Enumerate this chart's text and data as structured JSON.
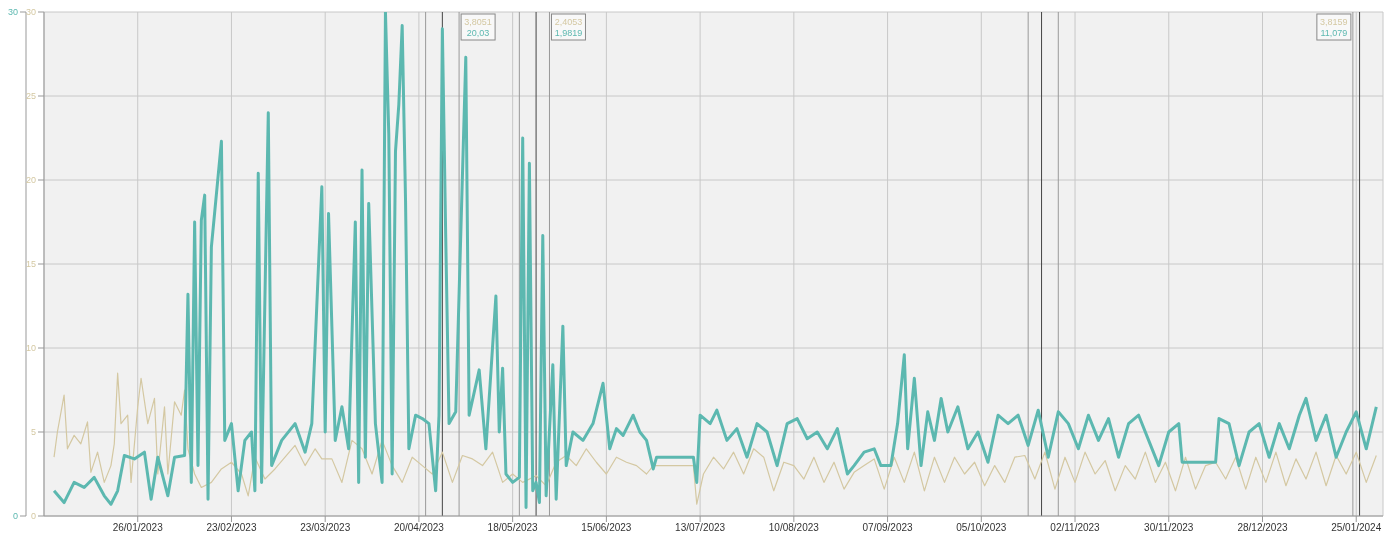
{
  "chart_data": {
    "type": "line",
    "xlim": [
      "2022-12-29",
      "2024-02-02"
    ],
    "xticks": [
      {
        "value": "2023-01-26",
        "label": "26/01/2023"
      },
      {
        "value": "2023-02-23",
        "label": "23/02/2023"
      },
      {
        "value": "2023-03-23",
        "label": "23/03/2023"
      },
      {
        "value": "2023-04-20",
        "label": "20/04/2023"
      },
      {
        "value": "2023-05-18",
        "label": "18/05/2023"
      },
      {
        "value": "2023-06-15",
        "label": "15/06/2023"
      },
      {
        "value": "2023-07-13",
        "label": "13/07/2023"
      },
      {
        "value": "2023-08-10",
        "label": "10/08/2023"
      },
      {
        "value": "2023-09-07",
        "label": "07/09/2023"
      },
      {
        "value": "2023-10-05",
        "label": "05/10/2023"
      },
      {
        "value": "2023-11-02",
        "label": "02/11/2023"
      },
      {
        "value": "2023-11-30",
        "label": "30/11/2023"
      },
      {
        "value": "2023-12-28",
        "label": "28/12/2023"
      },
      {
        "value": "2024-01-25",
        "label": "25/01/2024"
      }
    ],
    "ylim": [
      0,
      30
    ],
    "yticks": [
      0,
      5,
      10,
      15,
      20,
      25,
      30
    ],
    "y2lim": [
      0,
      30
    ],
    "y2ticks": [
      0,
      30
    ],
    "grid": true,
    "marker": "none",
    "line_style": "solid",
    "ref_lines": [
      {
        "axis": "x",
        "value": "2023-04-22",
        "color": "#999999"
      },
      {
        "axis": "x",
        "value": "2023-04-27",
        "color": "#444444"
      },
      {
        "axis": "x",
        "value": "2023-05-02",
        "color": "#999999"
      },
      {
        "axis": "x",
        "value": "2023-05-20",
        "color": "#999999"
      },
      {
        "axis": "x",
        "value": "2023-05-25",
        "color": "#444444"
      },
      {
        "axis": "x",
        "value": "2023-05-29",
        "color": "#999999"
      },
      {
        "axis": "x",
        "value": "2023-10-19",
        "color": "#999999"
      },
      {
        "axis": "x",
        "value": "2023-10-23",
        "color": "#444444"
      },
      {
        "axis": "x",
        "value": "2023-10-28",
        "color": "#999999"
      },
      {
        "axis": "x",
        "value": "2024-01-24",
        "color": "#999999"
      },
      {
        "axis": "x",
        "value": "2024-01-26",
        "color": "#444444"
      }
    ],
    "annotations": [
      {
        "text": "3,8051",
        "x": "2023-05-02"
      },
      {
        "text": "20,03",
        "x": "2023-05-02"
      },
      {
        "text": "2,4053",
        "x": "2023-05-29"
      },
      {
        "text": "1,9819",
        "x": "2023-05-29"
      },
      {
        "text": "3,8159",
        "x": "2024-01-24"
      },
      {
        "text": "11,079",
        "x": "2024-01-24"
      }
    ],
    "series": [
      {
        "color": "#d4c8a2",
        "x": [
          "2023-01-01",
          "2023-01-02",
          "2023-01-04",
          "2023-01-05",
          "2023-01-07",
          "2023-01-09",
          "2023-01-11",
          "2023-01-12",
          "2023-01-14",
          "2023-01-16",
          "2023-01-18",
          "2023-01-19",
          "2023-01-20",
          "2023-01-21",
          "2023-01-23",
          "2023-01-24",
          "2023-01-26",
          "2023-01-27",
          "2023-01-29",
          "2023-01-31",
          "2023-02-01",
          "2023-02-03",
          "2023-02-04",
          "2023-02-06",
          "2023-02-08",
          "2023-02-09",
          "2023-02-10",
          "2023-02-12",
          "2023-02-14",
          "2023-02-17",
          "2023-02-20",
          "2023-02-23",
          "2023-02-26",
          "2023-02-28",
          "2023-03-02",
          "2023-03-05",
          "2023-03-08",
          "2023-03-11",
          "2023-03-14",
          "2023-03-17",
          "2023-03-20",
          "2023-03-22",
          "2023-03-25",
          "2023-03-28",
          "2023-03-31",
          "2023-04-03",
          "2023-04-06",
          "2023-04-09",
          "2023-04-12",
          "2023-04-15",
          "2023-04-18",
          "2023-04-21",
          "2023-04-24",
          "2023-04-27",
          "2023-04-30",
          "2023-05-03",
          "2023-05-06",
          "2023-05-09",
          "2023-05-12",
          "2023-05-15",
          "2023-05-18",
          "2023-05-21",
          "2023-05-25",
          "2023-05-28",
          "2023-05-31",
          "2023-06-03",
          "2023-06-06",
          "2023-06-09",
          "2023-06-12",
          "2023-06-15",
          "2023-06-18",
          "2023-06-21",
          "2023-06-24",
          "2023-06-27",
          "2023-06-29",
          "2023-07-11",
          "2023-07-12",
          "2023-07-14",
          "2023-07-17",
          "2023-07-20",
          "2023-07-23",
          "2023-07-26",
          "2023-07-29",
          "2023-08-01",
          "2023-08-04",
          "2023-08-07",
          "2023-08-10",
          "2023-08-13",
          "2023-08-16",
          "2023-08-19",
          "2023-08-22",
          "2023-08-25",
          "2023-08-28",
          "2023-08-31",
          "2023-09-03",
          "2023-09-06",
          "2023-09-09",
          "2023-09-12",
          "2023-09-15",
          "2023-09-18",
          "2023-09-21",
          "2023-09-24",
          "2023-09-27",
          "2023-09-30",
          "2023-10-03",
          "2023-10-06",
          "2023-10-09",
          "2023-10-12",
          "2023-10-15",
          "2023-10-18",
          "2023-10-21",
          "2023-10-24",
          "2023-10-27",
          "2023-10-30",
          "2023-11-02",
          "2023-11-05",
          "2023-11-08",
          "2023-11-11",
          "2023-11-14",
          "2023-11-17",
          "2023-11-20",
          "2023-11-23",
          "2023-11-26",
          "2023-11-29",
          "2023-12-02",
          "2023-12-05",
          "2023-12-08",
          "2023-12-11",
          "2023-12-14",
          "2023-12-17",
          "2023-12-20",
          "2023-12-23",
          "2023-12-26",
          "2023-12-29",
          "2024-01-01",
          "2024-01-04",
          "2024-01-07",
          "2024-01-10",
          "2024-01-13",
          "2024-01-16",
          "2024-01-19",
          "2024-01-22",
          "2024-01-25",
          "2024-01-28",
          "2024-01-31"
        ],
        "values": [
          3.5,
          5.0,
          7.2,
          4.0,
          4.8,
          4.3,
          5.6,
          2.6,
          3.8,
          2.0,
          3.0,
          4.3,
          8.5,
          5.5,
          6.0,
          2.0,
          6.5,
          8.2,
          5.5,
          7.0,
          2.5,
          6.5,
          2.5,
          6.8,
          6.0,
          7.5,
          4.0,
          2.5,
          1.7,
          2.0,
          2.8,
          3.2,
          2.5,
          1.2,
          3.5,
          2.2,
          2.8,
          3.5,
          4.2,
          3.0,
          4.0,
          3.4,
          3.4,
          2.0,
          4.5,
          4.0,
          2.5,
          4.5,
          3.0,
          2.0,
          3.5,
          3.0,
          2.5,
          3.8,
          2.0,
          3.6,
          3.4,
          3.0,
          3.8,
          2.0,
          2.5,
          2.0,
          2.4,
          1.8,
          3.2,
          3.6,
          3.0,
          4.0,
          3.2,
          2.5,
          3.5,
          3.2,
          3.0,
          2.5,
          3.0,
          3.0,
          0.7,
          2.5,
          3.5,
          2.8,
          3.8,
          2.5,
          4.0,
          3.5,
          1.5,
          3.2,
          3.0,
          2.2,
          3.5,
          2.0,
          3.2,
          1.6,
          2.6,
          3.0,
          3.4,
          1.6,
          3.5,
          2.0,
          3.8,
          1.5,
          3.5,
          2.0,
          3.5,
          2.5,
          3.2,
          1.8,
          3.0,
          2.0,
          3.5,
          3.6,
          2.2,
          3.8,
          1.6,
          3.5,
          2.0,
          3.8,
          2.5,
          3.3,
          1.5,
          3.0,
          2.2,
          3.8,
          2.0,
          3.2,
          1.5,
          3.5,
          1.6,
          3.0,
          3.2,
          2.2,
          3.5,
          1.6,
          3.5,
          2.0,
          3.8,
          1.8,
          3.4,
          2.2,
          3.8,
          1.8,
          3.6,
          2.5,
          3.8,
          2.0,
          3.6
        ]
      },
      {
        "color": "#5cb8b0",
        "axis": "y2",
        "x": [
          "2023-01-01",
          "2023-01-04",
          "2023-01-07",
          "2023-01-10",
          "2023-01-13",
          "2023-01-16",
          "2023-01-18",
          "2023-01-20",
          "2023-01-22",
          "2023-01-25",
          "2023-01-28",
          "2023-01-30",
          "2023-02-01",
          "2023-02-04",
          "2023-02-06",
          "2023-02-09",
          "2023-02-10",
          "2023-02-11",
          "2023-02-12",
          "2023-02-13",
          "2023-02-14",
          "2023-02-15",
          "2023-02-16",
          "2023-02-17",
          "2023-02-19",
          "2023-02-20",
          "2023-02-21",
          "2023-02-23",
          "2023-02-25",
          "2023-02-27",
          "2023-03-01",
          "2023-03-02",
          "2023-03-03",
          "2023-03-04",
          "2023-03-06",
          "2023-03-07",
          "2023-03-10",
          "2023-03-14",
          "2023-03-17",
          "2023-03-19",
          "2023-03-22",
          "2023-03-23",
          "2023-03-24",
          "2023-03-26",
          "2023-03-28",
          "2023-03-30",
          "2023-04-01",
          "2023-04-02",
          "2023-04-03",
          "2023-04-04",
          "2023-04-05",
          "2023-04-07",
          "2023-04-09",
          "2023-04-10",
          "2023-04-11",
          "2023-04-12",
          "2023-04-13",
          "2023-04-14",
          "2023-04-15",
          "2023-04-16",
          "2023-04-17",
          "2023-04-19",
          "2023-04-21",
          "2023-04-23",
          "2023-04-25",
          "2023-04-26",
          "2023-04-27",
          "2023-04-28",
          "2023-04-29",
          "2023-05-01",
          "2023-05-04",
          "2023-05-05",
          "2023-05-08",
          "2023-05-10",
          "2023-05-13",
          "2023-05-14",
          "2023-05-15",
          "2023-05-16",
          "2023-05-18",
          "2023-05-20",
          "2023-05-21",
          "2023-05-22",
          "2023-05-23",
          "2023-05-24",
          "2023-05-25",
          "2023-05-26",
          "2023-05-27",
          "2023-05-28",
          "2023-05-30",
          "2023-05-31",
          "2023-06-02",
          "2023-06-03",
          "2023-06-05",
          "2023-06-08",
          "2023-06-11",
          "2023-06-14",
          "2023-06-16",
          "2023-06-18",
          "2023-06-20",
          "2023-06-23",
          "2023-06-25",
          "2023-06-27",
          "2023-06-29",
          "2023-06-30",
          "2023-07-11",
          "2023-07-12",
          "2023-07-13",
          "2023-07-16",
          "2023-07-18",
          "2023-07-21",
          "2023-07-24",
          "2023-07-27",
          "2023-07-30",
          "2023-08-02",
          "2023-08-05",
          "2023-08-08",
          "2023-08-11",
          "2023-08-14",
          "2023-08-17",
          "2023-08-20",
          "2023-08-23",
          "2023-08-26",
          "2023-08-28",
          "2023-08-31",
          "2023-09-03",
          "2023-09-05",
          "2023-09-08",
          "2023-09-10",
          "2023-09-12",
          "2023-09-13",
          "2023-09-15",
          "2023-09-17",
          "2023-09-19",
          "2023-09-21",
          "2023-09-23",
          "2023-09-25",
          "2023-09-28",
          "2023-10-01",
          "2023-10-04",
          "2023-10-07",
          "2023-10-10",
          "2023-10-13",
          "2023-10-16",
          "2023-10-19",
          "2023-10-22",
          "2023-10-25",
          "2023-10-28",
          "2023-10-31",
          "2023-11-03",
          "2023-11-06",
          "2023-11-09",
          "2023-11-12",
          "2023-11-15",
          "2023-11-18",
          "2023-11-21",
          "2023-11-24",
          "2023-11-27",
          "2023-11-30",
          "2023-12-03",
          "2023-12-04",
          "2023-12-09",
          "2023-12-14",
          "2023-12-15",
          "2023-12-18",
          "2023-12-21",
          "2023-12-24",
          "2023-12-27",
          "2023-12-30",
          "2024-01-02",
          "2024-01-05",
          "2024-01-08",
          "2024-01-10",
          "2024-01-13",
          "2024-01-16",
          "2024-01-19",
          "2024-01-22",
          "2024-01-25",
          "2024-01-28",
          "2024-01-31"
        ],
        "values": [
          1.5,
          0.8,
          2.0,
          1.7,
          2.3,
          1.2,
          0.7,
          1.5,
          3.6,
          3.4,
          3.8,
          1.0,
          3.5,
          1.2,
          3.5,
          3.6,
          13.2,
          2.0,
          17.5,
          3.0,
          17.6,
          19.1,
          1.0,
          16.0,
          20.2,
          22.3,
          4.5,
          5.5,
          1.5,
          4.5,
          5.0,
          1.5,
          20.4,
          2.0,
          24.0,
          3.0,
          4.5,
          5.5,
          3.8,
          5.5,
          19.6,
          5.0,
          18.0,
          4.5,
          6.5,
          4.0,
          17.5,
          2.0,
          20.6,
          3.5,
          18.6,
          5.5,
          2.0,
          30,
          22.7,
          2.5,
          21.7,
          24.5,
          29.2,
          18.8,
          4.0,
          6.0,
          5.8,
          5.5,
          1.5,
          6.0,
          29.0,
          16.7,
          5.5,
          6.2,
          27.3,
          6.0,
          8.7,
          4.0,
          13.1,
          5.0,
          8.8,
          2.5,
          2.0,
          2.3,
          22.5,
          0.5,
          21.0,
          1.5,
          2.0,
          0.8,
          16.7,
          1.2,
          9.0,
          1.0,
          11.3,
          3.0,
          5.0,
          4.5,
          5.5,
          7.9,
          4.0,
          5.2,
          4.8,
          6.0,
          5.0,
          4.5,
          2.8,
          3.5,
          3.5,
          2.0,
          6.0,
          5.5,
          6.3,
          4.5,
          5.2,
          3.5,
          5.5,
          5.0,
          3.0,
          5.5,
          5.8,
          4.6,
          5.0,
          4.0,
          5.2,
          2.5,
          3.0,
          3.8,
          4.0,
          3.0,
          3.0,
          5.5,
          9.6,
          4.0,
          8.2,
          3.0,
          6.2,
          4.5,
          7.0,
          5.0,
          6.5,
          4.0,
          5.0,
          3.2,
          6.0,
          5.5,
          6.0,
          4.2,
          6.3,
          3.5,
          6.2,
          5.5,
          4.0,
          6.0,
          4.5,
          5.8,
          3.5,
          5.5,
          6.0,
          4.5,
          3.0,
          5.0,
          5.5,
          3.2,
          3.2,
          3.2,
          5.8,
          5.5,
          3.0,
          5.0,
          5.5,
          3.5,
          5.5,
          4.0,
          6.0,
          7.0,
          4.5,
          6.0,
          3.5,
          5.0,
          6.2,
          4.0,
          6.5
        ]
      }
    ]
  }
}
